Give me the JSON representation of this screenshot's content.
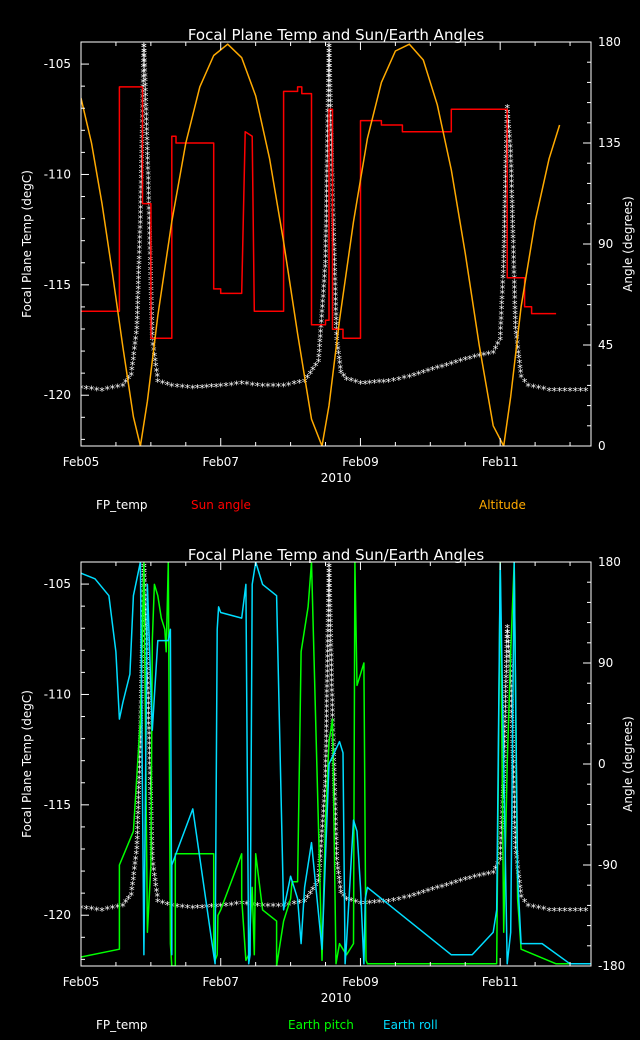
{
  "chart_data": [
    {
      "type": "line",
      "title": "Focal Plane Temp and Sun/Earth Angles",
      "xlabel": "2010",
      "ylabel": "Focal Plane Temp (degC)",
      "ylabel_right": "Angle (degrees)",
      "xlim": [
        5.0,
        12.3
      ],
      "ylim": [
        -122.3,
        -104.0
      ],
      "ylim_right": [
        0,
        180
      ],
      "x_ticks": [
        {
          "v": 5,
          "label": "Feb05"
        },
        {
          "v": 7,
          "label": "Feb07"
        },
        {
          "v": 9,
          "label": "Feb09"
        },
        {
          "v": 11,
          "label": "Feb11"
        }
      ],
      "y_ticks": [
        {
          "v": -105,
          "label": "-105"
        },
        {
          "v": -110,
          "label": "-110"
        },
        {
          "v": -115,
          "label": "-115"
        },
        {
          "v": -120,
          "label": "-120"
        }
      ],
      "y2_ticks": [
        {
          "v": 180,
          "label": "180"
        },
        {
          "v": 135,
          "label": "135"
        },
        {
          "v": 90,
          "label": "90"
        },
        {
          "v": 45,
          "label": "45"
        },
        {
          "v": 0,
          "label": "0"
        }
      ],
      "legend": [
        "FP_temp",
        "Sun angle",
        "Altitude"
      ],
      "series": [
        {
          "name": "FP_temp",
          "color": "#ffffff",
          "style": "star",
          "axis": "left",
          "x": [
            5.0,
            5.3,
            5.6,
            5.72,
            5.8,
            5.85,
            5.9,
            5.96,
            6.02,
            6.1,
            6.3,
            6.6,
            7.0,
            7.3,
            7.6,
            7.9,
            8.2,
            8.4,
            8.5,
            8.55,
            8.6,
            8.66,
            8.72,
            8.8,
            9.0,
            9.4,
            9.7,
            10.1,
            10.5,
            10.9,
            11.0,
            11.05,
            11.1,
            11.15,
            11.22,
            11.3,
            11.4,
            11.7,
            12.0,
            12.3
          ],
          "y": [
            -119.7,
            -119.8,
            -119.6,
            -119.1,
            -117.0,
            -112.0,
            -104.0,
            -110.0,
            -117.5,
            -119.4,
            -119.6,
            -119.7,
            -119.6,
            -119.5,
            -119.6,
            -119.6,
            -119.4,
            -118.5,
            -114.0,
            -104.0,
            -111.0,
            -117.5,
            -119.0,
            -119.3,
            -119.5,
            -119.4,
            -119.2,
            -118.8,
            -118.4,
            -118.1,
            -117.5,
            -114.0,
            -107.0,
            -109.0,
            -117.0,
            -119.2,
            -119.6,
            -119.8,
            -119.8,
            -119.8
          ]
        },
        {
          "name": "Sun angle",
          "color": "#ff0000",
          "style": "line",
          "axis": "right",
          "x": [
            5.0,
            5.55,
            5.55,
            5.88,
            5.88,
            6.0,
            6.0,
            6.3,
            6.3,
            6.36,
            6.36,
            6.9,
            6.9,
            7.0,
            7.0,
            7.3,
            7.3,
            7.35,
            7.35,
            7.45,
            7.45,
            7.48,
            7.48,
            7.9,
            7.9,
            8.1,
            8.1,
            8.16,
            8.16,
            8.3,
            8.3,
            8.5,
            8.5,
            8.55,
            8.55,
            8.6,
            8.6,
            8.75,
            8.75,
            9.0,
            9.0,
            9.3,
            9.3,
            9.6,
            9.6,
            10.3,
            10.3,
            11.1,
            11.1,
            11.35,
            11.35,
            11.45,
            11.45,
            11.8
          ],
          "y": [
            60,
            60,
            160,
            160,
            108,
            108,
            48,
            48,
            138,
            138,
            135,
            135,
            70,
            70,
            68,
            68,
            68,
            140,
            140,
            138,
            138,
            60,
            60,
            60,
            158,
            158,
            160,
            160,
            157,
            157,
            54,
            54,
            56,
            56,
            150,
            150,
            52,
            52,
            48,
            48,
            145,
            145,
            143,
            143,
            140,
            140,
            150,
            150,
            75,
            75,
            62,
            62,
            59,
            59
          ]
        },
        {
          "name": "Altitude",
          "color": "#ffaa00",
          "style": "line",
          "axis": "right",
          "x": [
            5.0,
            5.15,
            5.3,
            5.45,
            5.6,
            5.75,
            5.85,
            5.95,
            6.1,
            6.3,
            6.5,
            6.7,
            6.9,
            7.1,
            7.3,
            7.5,
            7.7,
            7.9,
            8.1,
            8.3,
            8.45,
            8.55,
            8.7,
            8.9,
            9.1,
            9.3,
            9.5,
            9.7,
            9.9,
            10.1,
            10.3,
            10.5,
            10.7,
            10.9,
            11.05,
            11.15,
            11.3,
            11.5,
            11.7,
            11.85
          ],
          "y": [
            155,
            135,
            108,
            77,
            44,
            13,
            0,
            20,
            58,
            100,
            135,
            160,
            174,
            179,
            173,
            156,
            128,
            91,
            50,
            12,
            0,
            18,
            56,
            100,
            137,
            162,
            176,
            179,
            172,
            152,
            123,
            86,
            45,
            9,
            0,
            22,
            62,
            100,
            128,
            143
          ]
        }
      ]
    },
    {
      "type": "line",
      "title": "Focal Plane Temp and Sun/Earth Angles",
      "xlabel": "2010",
      "ylabel": "Focal Plane Temp (degC)",
      "ylabel_right": "Angle (degrees)",
      "xlim": [
        5.0,
        12.3
      ],
      "ylim": [
        -122.3,
        -104.0
      ],
      "ylim_right": [
        -180,
        180
      ],
      "x_ticks": [
        {
          "v": 5,
          "label": "Feb05"
        },
        {
          "v": 7,
          "label": "Feb07"
        },
        {
          "v": 9,
          "label": "Feb09"
        },
        {
          "v": 11,
          "label": "Feb11"
        }
      ],
      "y_ticks": [
        {
          "v": -105,
          "label": "-105"
        },
        {
          "v": -110,
          "label": "-110"
        },
        {
          "v": -115,
          "label": "-115"
        },
        {
          "v": -120,
          "label": "-120"
        }
      ],
      "y2_ticks": [
        {
          "v": 180,
          "label": "180"
        },
        {
          "v": 90,
          "label": "90"
        },
        {
          "v": 0,
          "label": "0"
        },
        {
          "v": -90,
          "label": "-90"
        },
        {
          "v": -180,
          "label": "-180"
        }
      ],
      "legend": [
        "FP_temp",
        "Earth pitch",
        "Earth roll"
      ],
      "series": [
        {
          "name": "FP_temp",
          "color": "#ffffff",
          "style": "star",
          "axis": "left",
          "x": [
            5.0,
            5.3,
            5.6,
            5.72,
            5.8,
            5.85,
            5.9,
            5.96,
            6.02,
            6.1,
            6.3,
            6.6,
            7.0,
            7.3,
            7.6,
            7.9,
            8.2,
            8.4,
            8.5,
            8.55,
            8.6,
            8.66,
            8.72,
            8.8,
            9.0,
            9.4,
            9.7,
            10.1,
            10.5,
            10.9,
            11.0,
            11.05,
            11.1,
            11.15,
            11.22,
            11.3,
            11.4,
            11.7,
            12.0,
            12.3
          ],
          "y": [
            -119.7,
            -119.8,
            -119.6,
            -119.1,
            -117.0,
            -112.0,
            -104.0,
            -110.0,
            -117.5,
            -119.4,
            -119.6,
            -119.7,
            -119.6,
            -119.5,
            -119.6,
            -119.6,
            -119.4,
            -118.5,
            -114.0,
            -104.0,
            -111.0,
            -117.5,
            -119.0,
            -119.3,
            -119.5,
            -119.4,
            -119.2,
            -118.8,
            -118.4,
            -118.1,
            -117.5,
            -114.0,
            -107.0,
            -109.0,
            -117.0,
            -119.2,
            -119.6,
            -119.8,
            -119.8,
            -119.8
          ]
        },
        {
          "name": "Earth pitch",
          "color": "#00ff00",
          "style": "line",
          "axis": "right",
          "x": [
            5.0,
            5.55,
            5.55,
            5.75,
            5.85,
            5.9,
            5.95,
            6.0,
            6.02,
            6.05,
            6.1,
            6.15,
            6.2,
            6.22,
            6.25,
            6.28,
            6.3,
            6.35,
            6.35,
            6.9,
            6.9,
            6.92,
            6.95,
            6.96,
            7.0,
            7.3,
            7.3,
            7.36,
            7.4,
            7.45,
            7.48,
            7.5,
            7.6,
            7.8,
            7.8,
            7.9,
            8.0,
            8.02,
            8.1,
            8.15,
            8.2,
            8.25,
            8.3,
            8.45,
            8.5,
            8.55,
            8.6,
            8.65,
            8.7,
            8.8,
            8.9,
            8.92,
            8.95,
            9.0,
            9.05,
            9.08,
            9.1,
            9.5,
            10.5,
            10.95,
            11.0,
            11.05,
            11.1,
            11.15,
            11.2,
            11.25,
            11.3,
            11.8,
            12.3
          ],
          "y": [
            -172,
            -165,
            -90,
            -60,
            40,
            180,
            -150,
            -90,
            110,
            160,
            150,
            130,
            120,
            100,
            180,
            -160,
            -180,
            -180,
            -80,
            -80,
            -170,
            -175,
            -170,
            -135,
            -130,
            -80,
            -120,
            -175,
            -170,
            -110,
            -170,
            -80,
            -130,
            -140,
            -180,
            -140,
            -120,
            -105,
            -105,
            100,
            120,
            140,
            180,
            -175,
            -50,
            20,
            40,
            -178,
            -160,
            -170,
            -160,
            180,
            70,
            80,
            90,
            -175,
            -178,
            -178,
            -178,
            -178,
            180,
            -150,
            0,
            100,
            180,
            -120,
            -165,
            -178,
            -178
          ]
        },
        {
          "name": "Earth roll",
          "color": "#00ddff",
          "style": "line",
          "axis": "right",
          "x": [
            5.0,
            5.2,
            5.4,
            5.5,
            5.55,
            5.6,
            5.7,
            5.75,
            5.85,
            5.9,
            5.95,
            6.02,
            6.1,
            6.25,
            6.28,
            6.3,
            6.3,
            6.6,
            6.9,
            6.92,
            6.95,
            6.97,
            7.0,
            7.3,
            7.32,
            7.36,
            7.4,
            7.42,
            7.45,
            7.5,
            7.6,
            7.8,
            7.9,
            8.0,
            8.1,
            8.15,
            8.2,
            8.3,
            8.45,
            8.55,
            8.7,
            8.75,
            8.78,
            8.8,
            8.9,
            8.95,
            9.0,
            9.05,
            9.07,
            9.1,
            9.5,
            9.9,
            10.3,
            10.6,
            10.9,
            10.95,
            11.0,
            11.1,
            11.15,
            11.2,
            11.25,
            11.3,
            11.6,
            12.0,
            12.3
          ],
          "y": [
            170,
            165,
            150,
            100,
            40,
            55,
            80,
            150,
            180,
            -170,
            160,
            30,
            110,
            110,
            120,
            -170,
            -90,
            -40,
            -170,
            -178,
            120,
            140,
            135,
            130,
            140,
            160,
            -178,
            -170,
            160,
            180,
            160,
            150,
            -130,
            -100,
            -120,
            -160,
            -110,
            -70,
            -165,
            0,
            20,
            10,
            -178,
            -160,
            -50,
            -60,
            -110,
            -178,
            -120,
            -110,
            -130,
            -150,
            -170,
            -170,
            -150,
            -130,
            178,
            -178,
            -150,
            180,
            -100,
            -160,
            -160,
            -178,
            -178
          ]
        }
      ]
    }
  ]
}
